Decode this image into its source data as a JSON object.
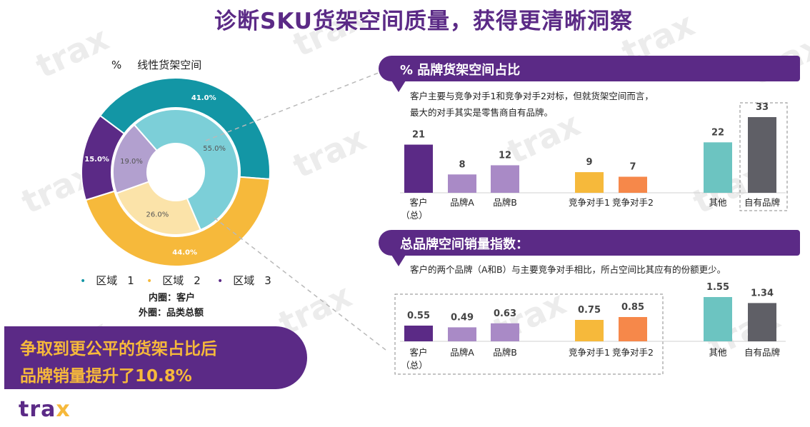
{
  "title": "诊断SKU货架空间质量，获得更清晰洞察",
  "watermark": "trax",
  "colors": {
    "purple": "#5b2a86",
    "lavender": "#a98ac6",
    "yellow": "#f6b93b",
    "orange": "#f6884a",
    "teal": "#6cc4c1",
    "gray": "#5f5f66",
    "donut_teal": "#1396a5",
    "donut_inner_teal": "#7ccfd8",
    "donut_inner_yellow": "#fbe3a9",
    "donut_inner_purple": "#b2a0cf"
  },
  "promo": {
    "line1": "争取到更公平的货架占比后",
    "line2": "品牌销量提升了10.8%"
  },
  "logo": {
    "text_a": "tra",
    "text_b": "x"
  },
  "chart_data": [
    {
      "type": "pie",
      "title": "%　线性货架空间",
      "title_pct": "%",
      "title_text": "线性货架空间",
      "legend": [
        {
          "label": "区域",
          "num": "1",
          "dot": "•"
        },
        {
          "label": "区域",
          "num": "2",
          "dot": "•"
        },
        {
          "label": "区域",
          "num": "3",
          "dot": "•"
        }
      ],
      "inner_note": "内圈：客户",
      "outer_note": "外圈：品类总额",
      "outer": [
        {
          "name": "区域 1",
          "value": 41.0,
          "label": "41.0%",
          "color": "#1396a5"
        },
        {
          "name": "区域 2",
          "value": 44.0,
          "label": "44.0%",
          "color": "#f6b93b"
        },
        {
          "name": "区域 3",
          "value": 15.0,
          "label": "15.0%",
          "color": "#5b2a86"
        }
      ],
      "inner": [
        {
          "name": "区域 1",
          "value": 55.0,
          "label": "55.0%",
          "color": "#7ccfd8"
        },
        {
          "name": "区域 2",
          "value": 26.0,
          "label": "26.0%",
          "color": "#fbe3a9"
        },
        {
          "name": "区域 3",
          "value": 19.0,
          "label": "19.0%",
          "color": "#b2a0cf"
        }
      ]
    },
    {
      "type": "bar",
      "title": "% 品牌货架空间占比",
      "description": [
        "客户主要与竞争对手1和竞争对手2对标，但就货架空间而言，",
        "最大的对手其实是零售商自有品牌。"
      ],
      "categories": [
        "客户",
        "品牌A",
        "品牌B",
        "竞争对手1",
        "竞争对手2",
        "其他",
        "自有品牌"
      ],
      "sublabels": [
        "（总）",
        "",
        "",
        "",
        "",
        "",
        ""
      ],
      "values": [
        21,
        8,
        12,
        9,
        7,
        22,
        33
      ],
      "value_labels": [
        "21",
        "8",
        "12",
        "9",
        "7",
        "22",
        "33"
      ],
      "colors": [
        "#5b2a86",
        "#a98ac6",
        "#a98ac6",
        "#f6b93b",
        "#f6884a",
        "#6cc4c1",
        "#5f5f66"
      ],
      "ylim": [
        0,
        33
      ]
    },
    {
      "type": "bar",
      "title": "总品牌空间销量指数：",
      "description": [
        "客户的两个品牌（A和B）与主要竞争对手相比，所占空间比其应有的份额更少。"
      ],
      "categories": [
        "客户",
        "品牌A",
        "品牌B",
        "竞争对手1",
        "竞争对手2",
        "其他",
        "自有品牌"
      ],
      "sublabels": [
        "（总）",
        "",
        "",
        "",
        "",
        "",
        ""
      ],
      "values": [
        0.55,
        0.49,
        0.63,
        0.75,
        0.85,
        1.55,
        1.34
      ],
      "value_labels": [
        "0.55",
        "0.49",
        "0.63",
        "0.75",
        "0.85",
        "1.55",
        "1.34"
      ],
      "colors": [
        "#5b2a86",
        "#a98ac6",
        "#a98ac6",
        "#f6b93b",
        "#f6884a",
        "#6cc4c1",
        "#5f5f66"
      ],
      "ylim": [
        0,
        1.55
      ]
    }
  ]
}
